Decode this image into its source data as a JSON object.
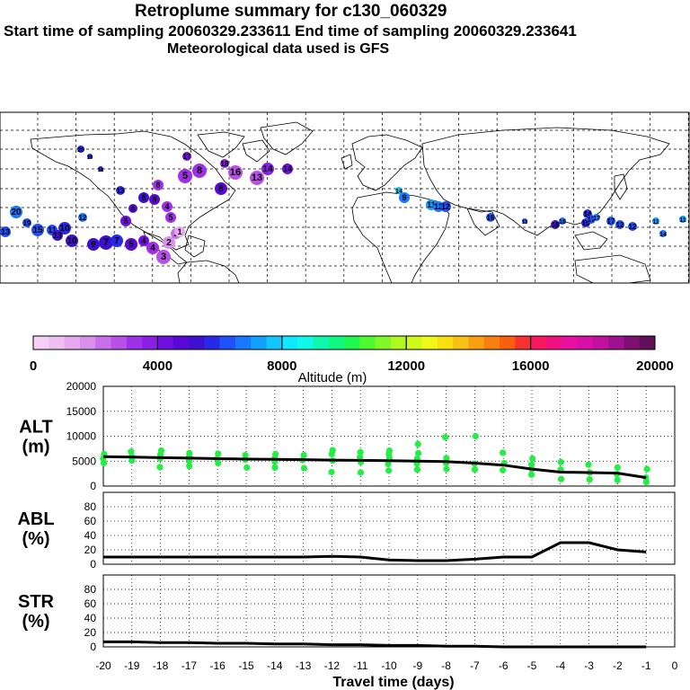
{
  "header": {
    "title": "Retroplume summary for c130_060329",
    "sampling_line": "Start time of sampling 20060329.233611     End time of sampling 20060329.233641",
    "met_line": "Meteorological data used is GFS"
  },
  "chart_data": [
    {
      "type": "map",
      "name": "retroplume-map",
      "projection": "lat-lon world map",
      "plume_labels_days": [
        20,
        19,
        18,
        17,
        16,
        15,
        14,
        13,
        12,
        11,
        10,
        9,
        8,
        7,
        6,
        5,
        4,
        3,
        2,
        1
      ],
      "note": "colored circles mark plume centroid positions labelled by travel day, colored by altitude"
    },
    {
      "type": "colorbar",
      "name": "altitude-colorbar",
      "range": [
        0,
        20000
      ],
      "tick_labels": [
        "0",
        "4000",
        "8000",
        "12000",
        "16000",
        "20000"
      ],
      "label": "Altitude (m)",
      "colors": [
        "#f6d0f6",
        "#eec0f0",
        "#e6a8ee",
        "#d890ec",
        "#c870ea",
        "#b850e8",
        "#a030e8",
        "#8820e6",
        "#7010e0",
        "#5a08d8",
        "#4010d0",
        "#2828e8",
        "#2050f8",
        "#1878ff",
        "#10a0ff",
        "#10c8ff",
        "#10e8ff",
        "#10f8e8",
        "#10f8b0",
        "#10f880",
        "#20f850",
        "#50f830",
        "#80f828",
        "#b0f820",
        "#d0f818",
        "#f0f818",
        "#f8e010",
        "#f8c010",
        "#f8a010",
        "#f88010",
        "#f86010",
        "#f83030",
        "#f81860",
        "#f01080",
        "#e810a0",
        "#d810a8",
        "#c010a0",
        "#a01090",
        "#801070",
        "#601058"
      ]
    },
    {
      "type": "scatter+line",
      "name": "alt-panel",
      "ylabel": "ALT\n(m)",
      "ylim": [
        0,
        20000
      ],
      "yticks": [
        0,
        5000,
        10000,
        15000,
        20000
      ],
      "x": [
        -20,
        -19,
        -18,
        -17,
        -16,
        -15,
        -14,
        -13,
        -12,
        -11,
        -10,
        -9,
        -8,
        -7,
        -6,
        -5,
        -4,
        -3,
        -2,
        -1
      ],
      "line": [
        5900,
        5800,
        5700,
        5600,
        5500,
        5400,
        5350,
        5300,
        5200,
        5150,
        5100,
        5000,
        4900,
        4600,
        4200,
        3400,
        2800,
        2700,
        2600,
        1700
      ],
      "points": [
        {
          "x": -20,
          "y": [
            6400,
            5500,
            4600
          ]
        },
        {
          "x": -19,
          "y": [
            6900,
            5900,
            5100
          ]
        },
        {
          "x": -18,
          "y": [
            7100,
            6300,
            5500,
            3800
          ]
        },
        {
          "x": -17,
          "y": [
            6600,
            5900,
            5000,
            4000
          ]
        },
        {
          "x": -16,
          "y": [
            6500,
            5500,
            4600
          ]
        },
        {
          "x": -15,
          "y": [
            6200,
            5300,
            3700
          ]
        },
        {
          "x": -14,
          "y": [
            6400,
            5600,
            4900,
            3700
          ]
        },
        {
          "x": -13,
          "y": [
            6200,
            5200,
            3600
          ]
        },
        {
          "x": -12,
          "y": [
            7200,
            6400,
            5100,
            2800
          ]
        },
        {
          "x": -11,
          "y": [
            6800,
            5800,
            4800,
            2700
          ]
        },
        {
          "x": -10,
          "y": [
            7100,
            6400,
            5600,
            4400,
            3100
          ]
        },
        {
          "x": -9,
          "y": [
            8400,
            6600,
            5500,
            4500,
            3300
          ]
        },
        {
          "x": -8,
          "y": [
            9800,
            5600,
            4600,
            3400
          ]
        },
        {
          "x": -7,
          "y": [
            10000,
            4500,
            3300
          ]
        },
        {
          "x": -6,
          "y": [
            6700,
            4600,
            3200
          ]
        },
        {
          "x": -5,
          "y": [
            5500,
            4300,
            3400,
            2300
          ]
        },
        {
          "x": -4,
          "y": [
            4800,
            3300,
            1400
          ]
        },
        {
          "x": -3,
          "y": [
            4300,
            2700,
            1300
          ]
        },
        {
          "x": -2,
          "y": [
            3700,
            2400,
            1200
          ]
        },
        {
          "x": -1,
          "y": [
            3400,
            1700,
            800
          ]
        }
      ]
    },
    {
      "type": "line",
      "name": "abl-panel",
      "ylabel": "ABL\n(%)",
      "ylim": [
        0,
        100
      ],
      "yticks": [
        0,
        20,
        40,
        60,
        80
      ],
      "x": [
        -20,
        -19,
        -18,
        -17,
        -16,
        -15,
        -14,
        -13,
        -12,
        -11,
        -10,
        -9,
        -8,
        -7,
        -6,
        -5,
        -4,
        -3,
        -2,
        -1
      ],
      "values": [
        10,
        10,
        10,
        10,
        10,
        10,
        10,
        10,
        11,
        10,
        6,
        5,
        5,
        7,
        10,
        10,
        30,
        30,
        20,
        17
      ]
    },
    {
      "type": "line",
      "name": "str-panel",
      "ylabel": "STR\n(%)",
      "ylim": [
        0,
        100
      ],
      "yticks": [
        0,
        20,
        40,
        60,
        80
      ],
      "x": [
        -20,
        -19,
        -18,
        -17,
        -16,
        -15,
        -14,
        -13,
        -12,
        -11,
        -10,
        -9,
        -8,
        -7,
        -6,
        -5,
        -4,
        -3,
        -2,
        -1
      ],
      "values": [
        7,
        7,
        6,
        6,
        5,
        5,
        4,
        4,
        3,
        3,
        2,
        2,
        1,
        1,
        0,
        0,
        0,
        0,
        0,
        0
      ]
    },
    {
      "type": "axis",
      "name": "travel-time-axis",
      "xlabel": "Travel time (days)",
      "xlim": [
        -20,
        0
      ],
      "xtick_labels": [
        "-20",
        "-19",
        "-18",
        "-17",
        "-16",
        "-15",
        "-14",
        "-13",
        "-12",
        "-11",
        "-10",
        "-9",
        "-8",
        "-7",
        "-6",
        "-5",
        "-4",
        "-3",
        "-2",
        "-1",
        "0"
      ]
    }
  ]
}
